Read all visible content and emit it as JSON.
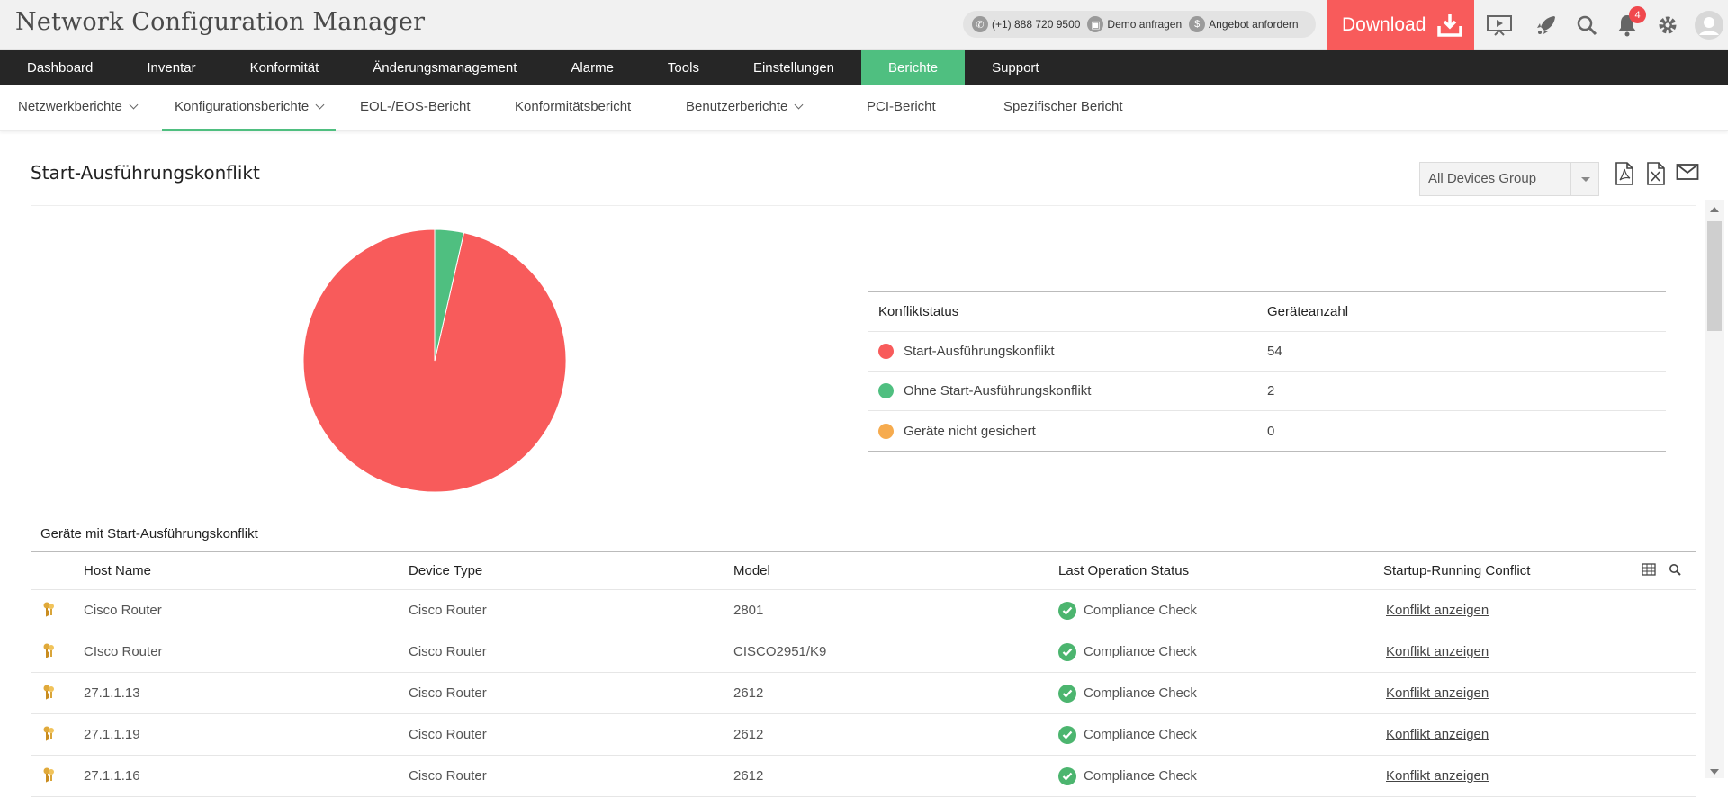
{
  "app": {
    "title": "Network Configuration Manager"
  },
  "contact": {
    "phone": "(+1) 888 720 9500",
    "demo": "Demo anfragen",
    "quote": "Angebot anfordern"
  },
  "download": {
    "label": "Download"
  },
  "notifications": {
    "count": "4"
  },
  "main_nav": [
    {
      "label": "Dashboard"
    },
    {
      "label": "Inventar"
    },
    {
      "label": "Konformität"
    },
    {
      "label": "Änderungsmanagement"
    },
    {
      "label": "Alarme"
    },
    {
      "label": "Tools"
    },
    {
      "label": "Einstellungen"
    },
    {
      "label": "Berichte"
    },
    {
      "label": "Support"
    }
  ],
  "sub_nav": [
    {
      "label": "Netzwerkberichte"
    },
    {
      "label": "Konfigurationsberichte"
    },
    {
      "label": "EOL-/EOS-Bericht"
    },
    {
      "label": "Konformitätsbericht"
    },
    {
      "label": "Benutzerberichte"
    },
    {
      "label": "PCI-Bericht"
    },
    {
      "label": "Spezifischer Bericht"
    }
  ],
  "report": {
    "title": "Start-Ausführungskonflikt",
    "group_select": "All Devices Group"
  },
  "colors": {
    "red": "#f85b5b",
    "green": "#4fbf80",
    "orange": "#f6ab4e"
  },
  "chart_data": {
    "type": "pie",
    "categories": [
      "Start-Ausführungskonflikt",
      "Ohne Start-Ausführungskonflikt",
      "Geräte nicht gesichert"
    ],
    "values": [
      54,
      2,
      0
    ],
    "colors": [
      "#f85b5b",
      "#4fbf80",
      "#f6ab4e"
    ]
  },
  "legend": {
    "headers": [
      "Konfliktstatus",
      "Geräteanzahl"
    ],
    "rows": [
      {
        "status": "Start-Ausführungskonflikt",
        "count": "54"
      },
      {
        "status": "Ohne Start-Ausführungskonflikt",
        "count": "2"
      },
      {
        "status": "Geräte nicht gesichert",
        "count": "0"
      }
    ]
  },
  "devices": {
    "title": "Geräte mit Start-Ausführungskonflikt",
    "headers": [
      "Host Name",
      "Device Type",
      "Model",
      "Last Operation Status",
      "Startup-Running Conflict"
    ],
    "rows": [
      {
        "host": "Cisco Router",
        "type": "Cisco Router",
        "model": "2801",
        "status": "Compliance Check",
        "conflict": "Konflikt anzeigen"
      },
      {
        "host": "CIsco Router",
        "type": "Cisco Router",
        "model": "CISCO2951/K9",
        "status": "Compliance Check",
        "conflict": "Konflikt anzeigen"
      },
      {
        "host": "27.1.1.13",
        "type": "Cisco Router",
        "model": "2612",
        "status": "Compliance Check",
        "conflict": "Konflikt anzeigen"
      },
      {
        "host": "27.1.1.19",
        "type": "Cisco Router",
        "model": "2612",
        "status": "Compliance Check",
        "conflict": "Konflikt anzeigen"
      },
      {
        "host": "27.1.1.16",
        "type": "Cisco Router",
        "model": "2612",
        "status": "Compliance Check",
        "conflict": "Konflikt anzeigen"
      }
    ]
  }
}
